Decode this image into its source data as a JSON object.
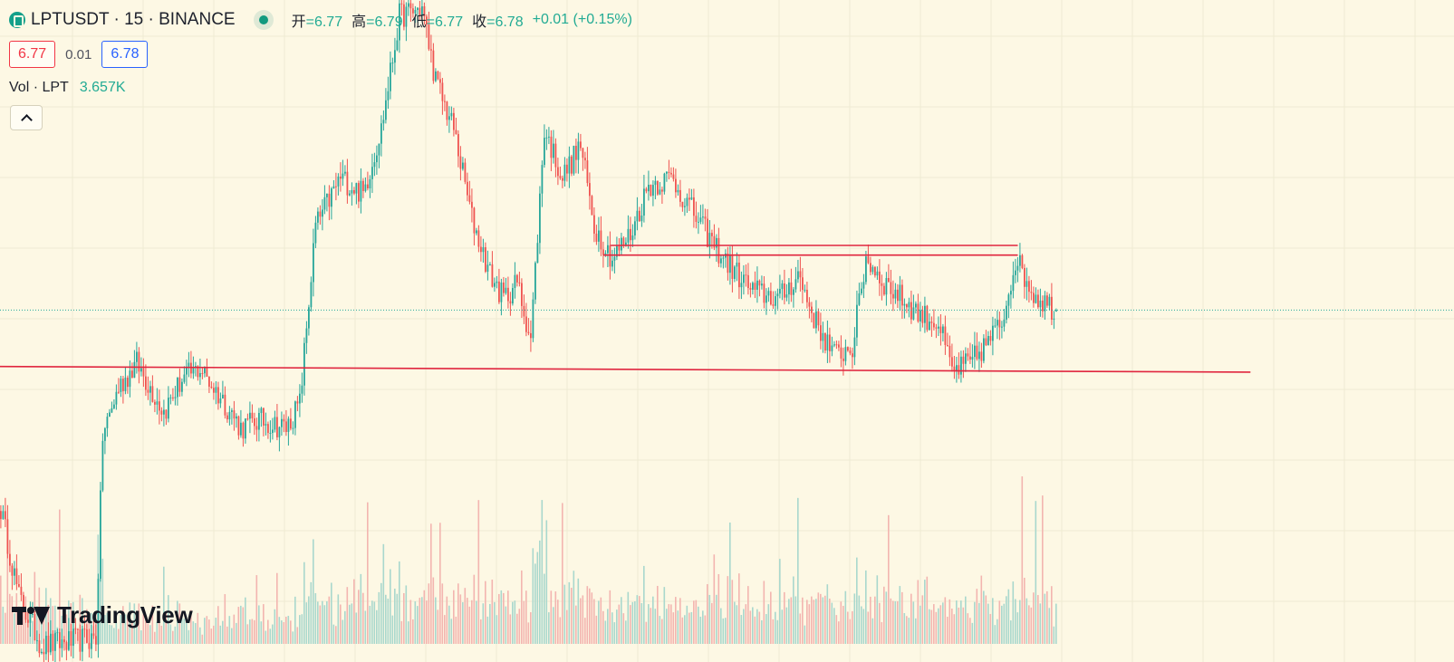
{
  "legend": {
    "symbol": "LPTUSDT · 15 · BINANCE",
    "open_label": "开",
    "open": "=6.77",
    "high_label": "高",
    "high": "=6.79",
    "low_label": "低",
    "low": "=6.77",
    "close_label": "收",
    "close": "=6.78",
    "change": "+0.01 (+0.15%)",
    "bid": "6.77",
    "spread": "0.01",
    "ask": "6.78",
    "vol_label": "Vol · LPT",
    "vol_value": "3.657K"
  },
  "branding": {
    "logo_text": "TradingView"
  },
  "colors": {
    "background": "#fdf8e4",
    "up": "#26a69a",
    "down": "#ef5350",
    "up_volume": "#a9d8cd",
    "down_volume": "#f3b5b0",
    "drawing_line": "#e0253e",
    "last_price_line": "#26a69a"
  },
  "chart_data": {
    "type": "candlestick",
    "symbol": "LPTUSDT",
    "interval": "15",
    "exchange": "BINANCE",
    "last": {
      "open": 6.77,
      "high": 6.79,
      "low": 6.77,
      "close": 6.78
    },
    "price_range": [
      4.6,
      8.7
    ],
    "anchors": [
      [
        0,
        5.55
      ],
      [
        8,
        5.0
      ],
      [
        18,
        4.7
      ],
      [
        42,
        4.75
      ],
      [
        45,
        6.0
      ],
      [
        52,
        6.3
      ],
      [
        60,
        6.45
      ],
      [
        72,
        6.15
      ],
      [
        80,
        6.35
      ],
      [
        88,
        6.42
      ],
      [
        100,
        6.18
      ],
      [
        106,
        6.05
      ],
      [
        114,
        6.1
      ],
      [
        126,
        6.05
      ],
      [
        132,
        6.2
      ],
      [
        139,
        7.3
      ],
      [
        150,
        7.6
      ],
      [
        160,
        7.5
      ],
      [
        168,
        7.9
      ],
      [
        176,
        8.6
      ],
      [
        186,
        8.65
      ],
      [
        192,
        8.2
      ],
      [
        200,
        7.9
      ],
      [
        208,
        7.35
      ],
      [
        216,
        7.0
      ],
      [
        222,
        6.85
      ],
      [
        228,
        6.95
      ],
      [
        234,
        6.6
      ],
      [
        240,
        7.9
      ],
      [
        248,
        7.6
      ],
      [
        256,
        7.8
      ],
      [
        262,
        7.3
      ],
      [
        270,
        7.1
      ],
      [
        278,
        7.25
      ],
      [
        286,
        7.55
      ],
      [
        296,
        7.6
      ],
      [
        305,
        7.4
      ],
      [
        314,
        7.2
      ],
      [
        322,
        7.05
      ],
      [
        332,
        6.9
      ],
      [
        344,
        6.85
      ],
      [
        352,
        7.0
      ],
      [
        360,
        6.7
      ],
      [
        368,
        6.5
      ],
      [
        376,
        6.55
      ],
      [
        382,
        7.1
      ],
      [
        390,
        6.95
      ],
      [
        398,
        6.85
      ],
      [
        406,
        6.75
      ],
      [
        414,
        6.7
      ],
      [
        420,
        6.4
      ],
      [
        428,
        6.45
      ],
      [
        434,
        6.55
      ],
      [
        442,
        6.7
      ],
      [
        448,
        7.1
      ],
      [
        456,
        6.88
      ],
      [
        462,
        6.82
      ],
      [
        466,
        6.78
      ]
    ],
    "horizontal_lines": [
      {
        "from": 0.0,
        "to": 0.86,
        "price_start": 6.43,
        "price_end": 6.395
      },
      {
        "from": 0.42,
        "to": 0.7,
        "price": 7.18
      },
      {
        "from": 0.415,
        "to": 0.7,
        "price": 7.12
      }
    ],
    "last_price": 6.78,
    "last_volume": "3.657K"
  }
}
